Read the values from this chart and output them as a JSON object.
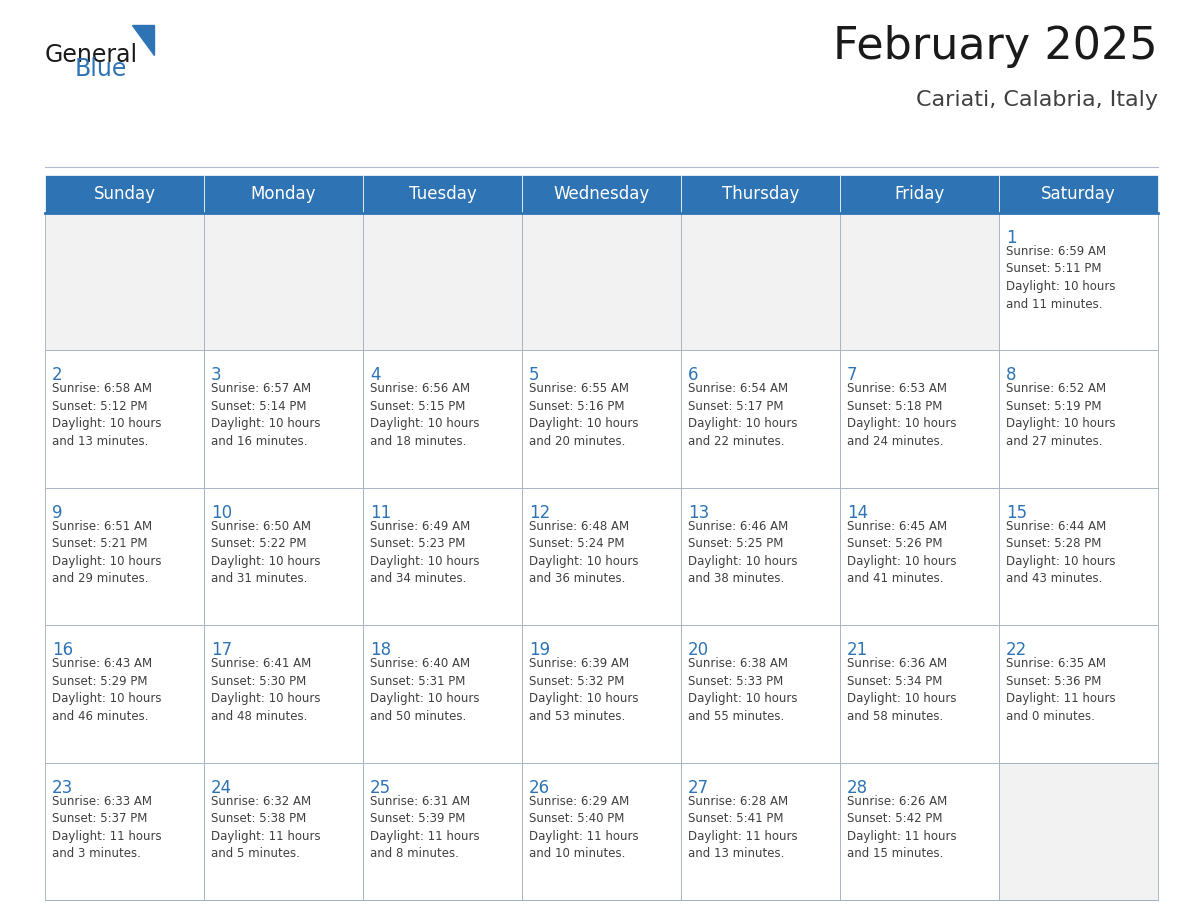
{
  "title": "February 2025",
  "subtitle": "Cariati, Calabria, Italy",
  "header_color": "#2e74b5",
  "header_text_color": "#ffffff",
  "cell_bg_color": "#ffffff",
  "cell_empty_bg": "#f0f0f0",
  "cell_border_color": "#a0afc0",
  "day_number_color": "#2e74b5",
  "text_color": "#404040",
  "days_of_week": [
    "Sunday",
    "Monday",
    "Tuesday",
    "Wednesday",
    "Thursday",
    "Friday",
    "Saturday"
  ],
  "weeks": [
    [
      {
        "day": null,
        "info": null
      },
      {
        "day": null,
        "info": null
      },
      {
        "day": null,
        "info": null
      },
      {
        "day": null,
        "info": null
      },
      {
        "day": null,
        "info": null
      },
      {
        "day": null,
        "info": null
      },
      {
        "day": 1,
        "info": "Sunrise: 6:59 AM\nSunset: 5:11 PM\nDaylight: 10 hours\nand 11 minutes."
      }
    ],
    [
      {
        "day": 2,
        "info": "Sunrise: 6:58 AM\nSunset: 5:12 PM\nDaylight: 10 hours\nand 13 minutes."
      },
      {
        "day": 3,
        "info": "Sunrise: 6:57 AM\nSunset: 5:14 PM\nDaylight: 10 hours\nand 16 minutes."
      },
      {
        "day": 4,
        "info": "Sunrise: 6:56 AM\nSunset: 5:15 PM\nDaylight: 10 hours\nand 18 minutes."
      },
      {
        "day": 5,
        "info": "Sunrise: 6:55 AM\nSunset: 5:16 PM\nDaylight: 10 hours\nand 20 minutes."
      },
      {
        "day": 6,
        "info": "Sunrise: 6:54 AM\nSunset: 5:17 PM\nDaylight: 10 hours\nand 22 minutes."
      },
      {
        "day": 7,
        "info": "Sunrise: 6:53 AM\nSunset: 5:18 PM\nDaylight: 10 hours\nand 24 minutes."
      },
      {
        "day": 8,
        "info": "Sunrise: 6:52 AM\nSunset: 5:19 PM\nDaylight: 10 hours\nand 27 minutes."
      }
    ],
    [
      {
        "day": 9,
        "info": "Sunrise: 6:51 AM\nSunset: 5:21 PM\nDaylight: 10 hours\nand 29 minutes."
      },
      {
        "day": 10,
        "info": "Sunrise: 6:50 AM\nSunset: 5:22 PM\nDaylight: 10 hours\nand 31 minutes."
      },
      {
        "day": 11,
        "info": "Sunrise: 6:49 AM\nSunset: 5:23 PM\nDaylight: 10 hours\nand 34 minutes."
      },
      {
        "day": 12,
        "info": "Sunrise: 6:48 AM\nSunset: 5:24 PM\nDaylight: 10 hours\nand 36 minutes."
      },
      {
        "day": 13,
        "info": "Sunrise: 6:46 AM\nSunset: 5:25 PM\nDaylight: 10 hours\nand 38 minutes."
      },
      {
        "day": 14,
        "info": "Sunrise: 6:45 AM\nSunset: 5:26 PM\nDaylight: 10 hours\nand 41 minutes."
      },
      {
        "day": 15,
        "info": "Sunrise: 6:44 AM\nSunset: 5:28 PM\nDaylight: 10 hours\nand 43 minutes."
      }
    ],
    [
      {
        "day": 16,
        "info": "Sunrise: 6:43 AM\nSunset: 5:29 PM\nDaylight: 10 hours\nand 46 minutes."
      },
      {
        "day": 17,
        "info": "Sunrise: 6:41 AM\nSunset: 5:30 PM\nDaylight: 10 hours\nand 48 minutes."
      },
      {
        "day": 18,
        "info": "Sunrise: 6:40 AM\nSunset: 5:31 PM\nDaylight: 10 hours\nand 50 minutes."
      },
      {
        "day": 19,
        "info": "Sunrise: 6:39 AM\nSunset: 5:32 PM\nDaylight: 10 hours\nand 53 minutes."
      },
      {
        "day": 20,
        "info": "Sunrise: 6:38 AM\nSunset: 5:33 PM\nDaylight: 10 hours\nand 55 minutes."
      },
      {
        "day": 21,
        "info": "Sunrise: 6:36 AM\nSunset: 5:34 PM\nDaylight: 10 hours\nand 58 minutes."
      },
      {
        "day": 22,
        "info": "Sunrise: 6:35 AM\nSunset: 5:36 PM\nDaylight: 11 hours\nand 0 minutes."
      }
    ],
    [
      {
        "day": 23,
        "info": "Sunrise: 6:33 AM\nSunset: 5:37 PM\nDaylight: 11 hours\nand 3 minutes."
      },
      {
        "day": 24,
        "info": "Sunrise: 6:32 AM\nSunset: 5:38 PM\nDaylight: 11 hours\nand 5 minutes."
      },
      {
        "day": 25,
        "info": "Sunrise: 6:31 AM\nSunset: 5:39 PM\nDaylight: 11 hours\nand 8 minutes."
      },
      {
        "day": 26,
        "info": "Sunrise: 6:29 AM\nSunset: 5:40 PM\nDaylight: 11 hours\nand 10 minutes."
      },
      {
        "day": 27,
        "info": "Sunrise: 6:28 AM\nSunset: 5:41 PM\nDaylight: 11 hours\nand 13 minutes."
      },
      {
        "day": 28,
        "info": "Sunrise: 6:26 AM\nSunset: 5:42 PM\nDaylight: 11 hours\nand 15 minutes."
      },
      {
        "day": null,
        "info": null
      }
    ]
  ],
  "logo_general_color": "#1a1a1a",
  "logo_blue_color": "#2e74b5",
  "title_fontsize": 32,
  "subtitle_fontsize": 16,
  "header_fontsize": 12,
  "day_num_fontsize": 12,
  "cell_text_fontsize": 8.5,
  "fig_width": 11.88,
  "fig_height": 9.18,
  "dpi": 100
}
